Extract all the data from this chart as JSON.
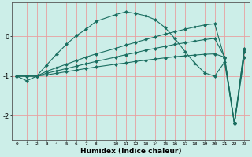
{
  "xlabel": "Humidex (Indice chaleur)",
  "bg_color": "#cceee8",
  "line_color": "#1a6e60",
  "grid_color": "#e8a0a0",
  "x_values": [
    0,
    1,
    2,
    3,
    4,
    5,
    6,
    7,
    8,
    10,
    11,
    12,
    13,
    14,
    15,
    16,
    17,
    18,
    19,
    20,
    21,
    22,
    23
  ],
  "line1": [
    -1.0,
    -1.12,
    -1.0,
    -0.72,
    -0.45,
    -0.2,
    0.02,
    0.18,
    0.38,
    0.55,
    0.62,
    0.58,
    0.52,
    0.42,
    0.22,
    -0.06,
    -0.38,
    -0.68,
    -0.92,
    -1.0,
    -0.65,
    -2.2,
    -0.52
  ],
  "line2": [
    -1.0,
    -1.0,
    -1.0,
    -0.88,
    -0.79,
    -0.7,
    -0.61,
    -0.52,
    -0.44,
    -0.3,
    -0.22,
    -0.15,
    -0.08,
    -0.01,
    0.06,
    0.12,
    0.18,
    0.24,
    0.29,
    0.32,
    -0.55,
    -2.2,
    -0.38
  ],
  "line3": [
    -1.0,
    -1.0,
    -1.0,
    -0.93,
    -0.87,
    -0.81,
    -0.75,
    -0.69,
    -0.63,
    -0.52,
    -0.46,
    -0.41,
    -0.35,
    -0.3,
    -0.25,
    -0.2,
    -0.16,
    -0.12,
    -0.08,
    -0.05,
    -0.52,
    -2.2,
    -0.32
  ],
  "line4": [
    -1.0,
    -1.0,
    -1.0,
    -0.97,
    -0.93,
    -0.89,
    -0.85,
    -0.81,
    -0.77,
    -0.7,
    -0.67,
    -0.63,
    -0.6,
    -0.57,
    -0.54,
    -0.51,
    -0.49,
    -0.47,
    -0.45,
    -0.44,
    -0.52,
    -2.2,
    -0.3
  ],
  "xlim": [
    -0.5,
    23.5
  ],
  "ylim": [
    -2.6,
    0.85
  ],
  "yticks": [
    0,
    -1,
    -2
  ],
  "xticks": [
    0,
    1,
    2,
    3,
    4,
    5,
    6,
    7,
    8,
    10,
    11,
    12,
    13,
    14,
    15,
    16,
    17,
    18,
    19,
    20,
    21,
    22,
    23
  ]
}
